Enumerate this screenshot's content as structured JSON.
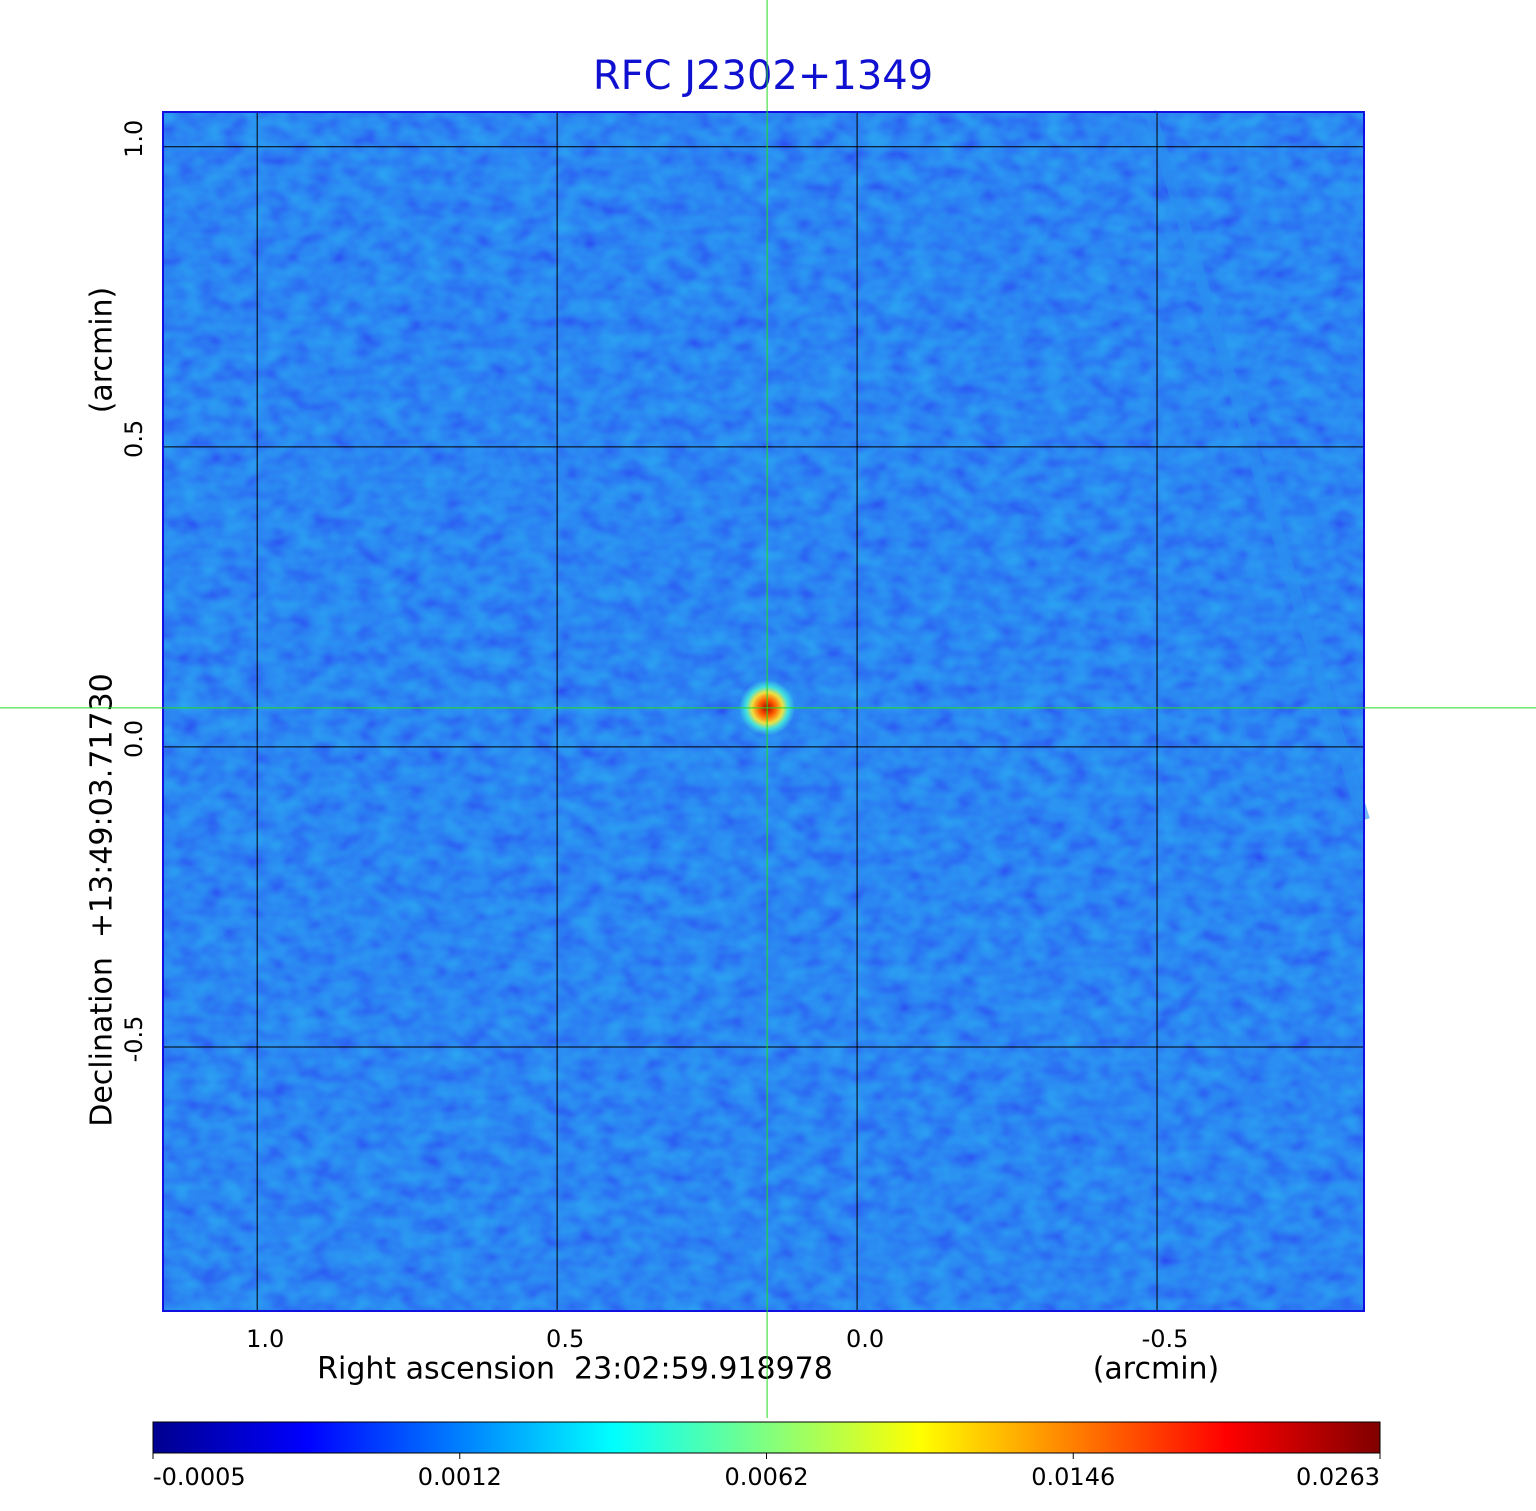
{
  "chart_data": {
    "type": "image",
    "title": "RFC J2302+1349",
    "xlabel": "Right ascension  23:02:59.918978",
    "xunit": "(arcmin)",
    "ylabel": "Declination  +13:49:03.71730",
    "yunit": "(arcmin)",
    "xlim": [
      1.157,
      -0.845
    ],
    "ylim": [
      -0.94,
      1.058
    ],
    "xticks": [
      {
        "value": 1,
        "label": "1.0"
      },
      0.5,
      {
        "value": 0,
        "label": "0.0"
      },
      -0.5
    ],
    "yticks": [
      -0.5,
      {
        "value": 0,
        "label": "0.0"
      },
      0.5,
      {
        "value": 1,
        "label": "1.0"
      }
    ],
    "grid": true,
    "crosshair": {
      "x": 0.15,
      "y": 0.065,
      "color": "#22dd22"
    },
    "colorbar": {
      "ticks": [
        -0.0005,
        0.0012,
        0.0062,
        0.0146,
        0.0263
      ],
      "colormap": "jet"
    }
  }
}
